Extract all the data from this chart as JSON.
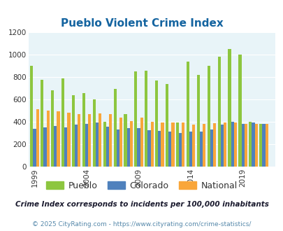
{
  "title": "Pueblo Violent Crime Index",
  "subtitle": "Crime Index corresponds to incidents per 100,000 inhabitants",
  "footer": "© 2025 CityRating.com - https://www.cityrating.com/crime-statistics/",
  "years": [
    1999,
    2000,
    2001,
    2002,
    2003,
    2004,
    2005,
    2006,
    2007,
    2008,
    2009,
    2010,
    2011,
    2012,
    2013,
    2014,
    2015,
    2016,
    2017,
    2018,
    2019,
    2020,
    2021
  ],
  "pueblo": [
    900,
    775,
    680,
    785,
    635,
    655,
    600,
    400,
    695,
    465,
    850,
    855,
    770,
    735,
    395,
    940,
    820,
    900,
    980,
    1050,
    1000,
    400,
    380
  ],
  "colorado": [
    335,
    350,
    360,
    350,
    375,
    380,
    395,
    355,
    330,
    345,
    345,
    325,
    315,
    310,
    300,
    310,
    310,
    330,
    375,
    400,
    380,
    395,
    380
  ],
  "national": [
    510,
    500,
    495,
    480,
    465,
    470,
    475,
    465,
    435,
    405,
    435,
    400,
    395,
    395,
    395,
    375,
    380,
    385,
    395,
    395,
    380,
    380,
    380
  ],
  "pueblo_color": "#8dc63f",
  "colorado_color": "#4f81bd",
  "national_color": "#f9a63a",
  "fig_bg_color": "#ffffff",
  "plot_bg_color": "#e8f4f8",
  "ylim": [
    0,
    1200
  ],
  "yticks": [
    0,
    200,
    400,
    600,
    800,
    1000,
    1200
  ],
  "xticks": [
    1999,
    2004,
    2009,
    2014,
    2019
  ],
  "title_color": "#1464a0",
  "subtitle_color": "#1a1a2e",
  "footer_color": "#5588aa",
  "bar_width": 0.28,
  "legend_labels": [
    "Pueblo",
    "Colorado",
    "National"
  ],
  "legend_text_color": "#333333"
}
